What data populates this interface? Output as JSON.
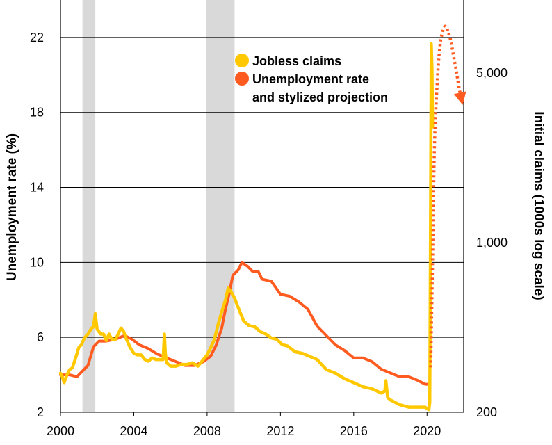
{
  "chart_data": {
    "type": "line",
    "xlim": [
      2000,
      2022
    ],
    "x_ticks": [
      "2000",
      "2004",
      "2008",
      "2012",
      "2016",
      "2020"
    ],
    "y_left": {
      "label": "Unemployment rate (%)",
      "range": [
        2,
        24
      ],
      "ticks": [
        "2",
        "6",
        "10",
        "14",
        "18",
        "22"
      ]
    },
    "y_right": {
      "label": "Initial claims (1000s log scale)",
      "scale": "log",
      "range": [
        200,
        10000
      ],
      "ticks": [
        "200",
        "1,000",
        "5,000"
      ]
    },
    "grid": "horizontal",
    "recessions": [
      {
        "start": 2001.2,
        "end": 2001.9
      },
      {
        "start": 2007.95,
        "end": 2009.5
      }
    ],
    "legend": {
      "placement": "top-right",
      "entries": [
        {
          "label_lines": [
            "Jobless claims"
          ],
          "color": "#ffc800"
        },
        {
          "label_lines": [
            "Unemployment rate",
            "and stylized projection"
          ],
          "color": "#ff5a1f"
        }
      ]
    },
    "series": [
      {
        "name": "Unemployment rate",
        "axis": "left",
        "color": "#ff5a1f",
        "x": [
          2000.0,
          2000.5,
          2000.9,
          2001.2,
          2001.5,
          2001.8,
          2002.1,
          2002.5,
          2003.0,
          2003.5,
          2003.9,
          2004.3,
          2004.8,
          2005.3,
          2005.8,
          2006.3,
          2006.8,
          2007.3,
          2007.8,
          2008.2,
          2008.5,
          2008.8,
          2009.0,
          2009.2,
          2009.4,
          2009.7,
          2009.9,
          2010.2,
          2010.5,
          2010.8,
          2011.0,
          2011.5,
          2012.0,
          2012.5,
          2013.0,
          2013.5,
          2014.0,
          2014.5,
          2015.0,
          2015.5,
          2016.0,
          2016.5,
          2017.0,
          2017.5,
          2018.0,
          2018.5,
          2019.0,
          2019.5,
          2019.9,
          2020.1
        ],
        "values": [
          4.0,
          4.0,
          3.9,
          4.2,
          4.5,
          5.5,
          5.8,
          5.8,
          5.9,
          6.1,
          5.9,
          5.6,
          5.4,
          5.1,
          4.9,
          4.7,
          4.5,
          4.5,
          4.7,
          5.0,
          5.6,
          6.5,
          7.5,
          8.3,
          9.3,
          9.6,
          10.0,
          9.8,
          9.5,
          9.5,
          9.1,
          9.0,
          8.3,
          8.2,
          7.9,
          7.5,
          6.6,
          6.1,
          5.6,
          5.3,
          4.9,
          4.9,
          4.7,
          4.3,
          4.1,
          3.9,
          3.9,
          3.7,
          3.5,
          3.5
        ]
      },
      {
        "name": "Jobless claims",
        "axis": "right",
        "color": "#ffc800",
        "x": [
          2000.0,
          2000.1,
          2000.2,
          2000.35,
          2000.5,
          2000.65,
          2000.8,
          2001.0,
          2001.15,
          2001.3,
          2001.5,
          2001.7,
          2001.8,
          2001.9,
          2002.0,
          2002.2,
          2002.35,
          2002.5,
          2002.65,
          2002.8,
          2003.0,
          2003.15,
          2003.3,
          2003.45,
          2003.6,
          2003.8,
          2004.0,
          2004.2,
          2004.4,
          2004.6,
          2004.8,
          2005.0,
          2005.2,
          2005.4,
          2005.6,
          2005.67,
          2005.72,
          2005.8,
          2006.0,
          2006.3,
          2006.6,
          2006.9,
          2007.2,
          2007.5,
          2007.8,
          2008.0,
          2008.2,
          2008.4,
          2008.6,
          2008.8,
          2009.0,
          2009.15,
          2009.3,
          2009.5,
          2009.7,
          2010.0,
          2010.3,
          2010.6,
          2010.9,
          2011.2,
          2011.5,
          2011.8,
          2012.1,
          2012.4,
          2012.8,
          2013.2,
          2013.6,
          2014.0,
          2014.5,
          2015.0,
          2015.5,
          2016.0,
          2016.5,
          2017.0,
          2017.5,
          2017.7,
          2017.75,
          2017.85,
          2018.0,
          2018.5,
          2019.0,
          2019.5,
          2019.9,
          2020.1,
          2020.15,
          2020.2,
          2020.23,
          2020.27,
          2020.3
        ],
        "values": [
          290,
          280,
          265,
          285,
          300,
          305,
          330,
          370,
          380,
          405,
          420,
          445,
          450,
          510,
          440,
          420,
          420,
          395,
          420,
          400,
          400,
          420,
          445,
          430,
          400,
          370,
          350,
          345,
          345,
          330,
          325,
          335,
          330,
          330,
          330,
          420,
          350,
          320,
          310,
          310,
          315,
          315,
          320,
          310,
          330,
          345,
          370,
          400,
          460,
          520,
          580,
          650,
          630,
          590,
          540,
          475,
          455,
          450,
          430,
          420,
          405,
          400,
          380,
          375,
          355,
          350,
          340,
          330,
          300,
          290,
          275,
          265,
          255,
          250,
          240,
          245,
          270,
          230,
          225,
          215,
          210,
          210,
          210,
          205,
          220,
          1600,
          6600,
          5200,
          3000
        ]
      },
      {
        "name": "Stylized projection",
        "axis": "left",
        "style": "dotted",
        "color": "#ff5a1f",
        "x": [
          2020.2,
          2020.3,
          2020.4,
          2020.55,
          2020.7,
          2020.85,
          2021.0,
          2021.15,
          2021.3,
          2021.45,
          2021.6,
          2021.75,
          2021.9
        ],
        "values": [
          4.4,
          10.0,
          16.0,
          19.5,
          21.5,
          22.3,
          22.6,
          22.3,
          21.8,
          21.0,
          20.2,
          19.3,
          18.6
        ]
      }
    ]
  }
}
